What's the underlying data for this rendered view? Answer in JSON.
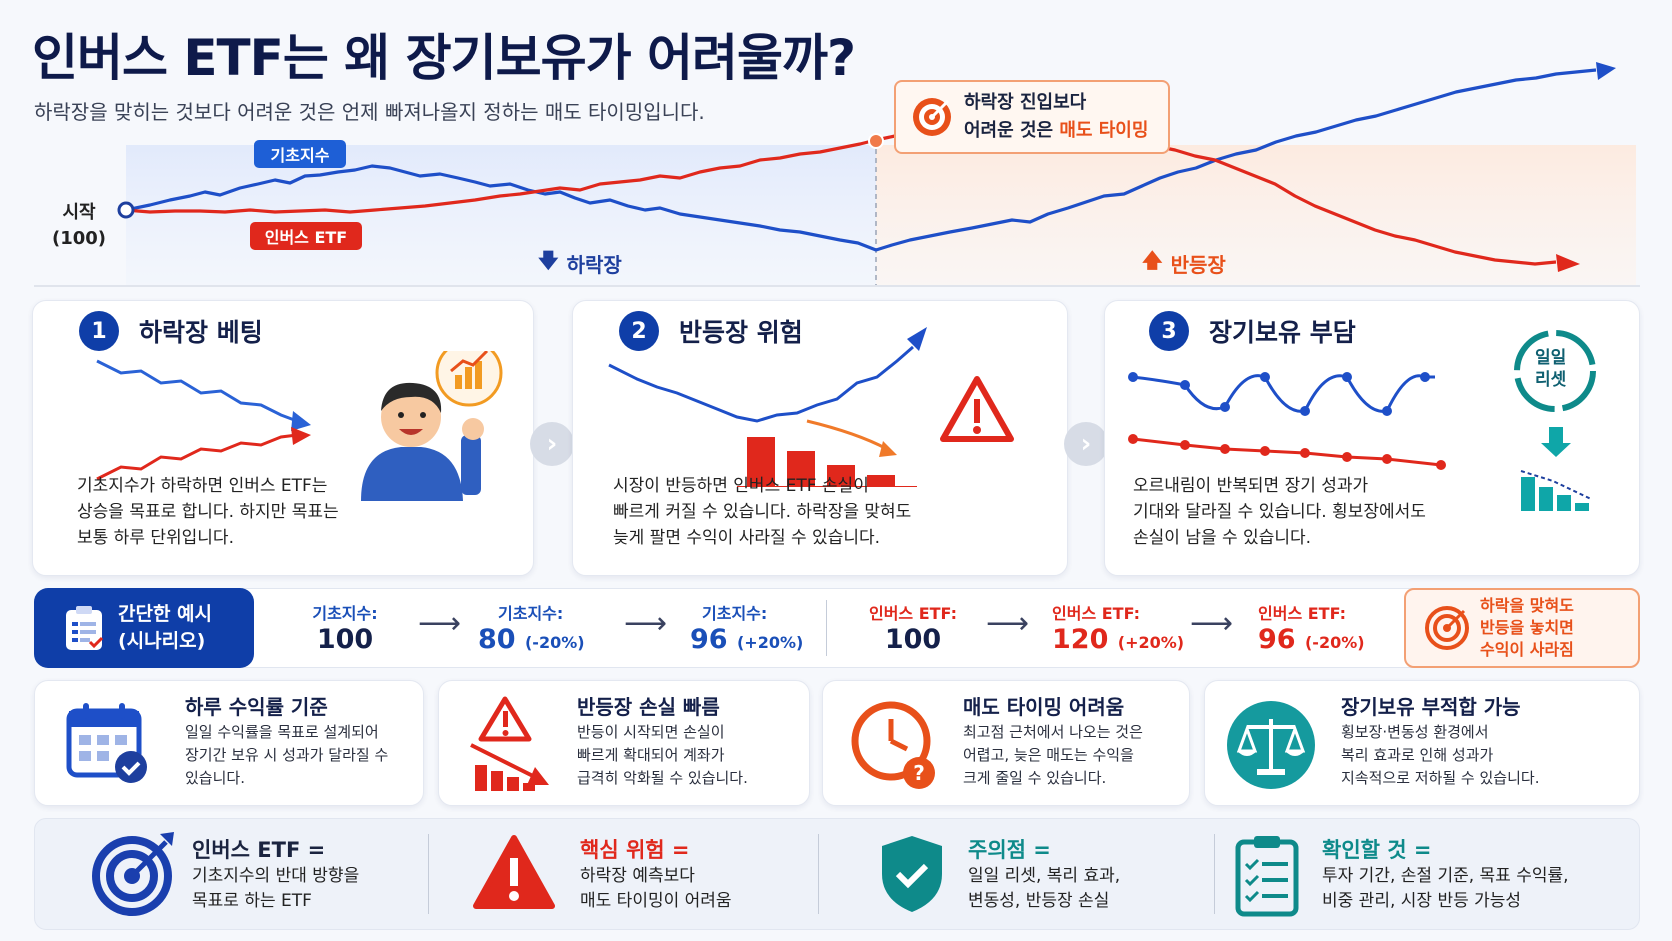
{
  "header": {
    "title": "인버스 ETF는 왜 장기보유가 어려울까?",
    "subtitle": "하락장을 맞히는 것보다 어려운 것은 언제 빠져나올지 정하는 매도 타이밍입니다."
  },
  "top_chart": {
    "start_label_line1": "시작",
    "start_label_line2": "(100)",
    "underlying_tag": "기초지수",
    "inverse_tag": "인버스 ETF",
    "bear_zone": "하락장",
    "rebound_zone": "반등장",
    "callout_line1": "하락장 진입보다",
    "callout_line2_plain": "어려운 것은 ",
    "callout_line2_highlight": "매도 타이밍",
    "colors": {
      "underlying": "#1e4fc8",
      "inverse": "#e0281c"
    }
  },
  "cards": [
    {
      "number": "1",
      "title": "하락장 베팅",
      "body": [
        "기초지수가 하락하면 인버스 ETF는",
        "상승을 목표로 합니다. 하지만 목표는",
        "보통 하루 단위입니다."
      ]
    },
    {
      "number": "2",
      "title": "반등장 위험",
      "body": [
        "시장이 반등하면 인버스 ETF 손실이",
        "빠르게 커질 수 있습니다. 하락장을 맞혀도",
        "늦게 팔면 수익이 사라질 수 있습니다."
      ]
    },
    {
      "number": "3",
      "title": "장기보유 부담",
      "body": [
        "오르내림이 반복되면 장기 성과가",
        "기대와 달라질 수 있습니다. 횡보장에서도",
        "손실이 남을 수 있습니다."
      ],
      "reset_line1": "일일",
      "reset_line2": "리셋"
    }
  ],
  "example": {
    "title_line1": "간단한 예시",
    "title_line2": "(시나리오)",
    "underlying": [
      {
        "label": "기초지수:",
        "value": "100",
        "change": ""
      },
      {
        "label": "기초지수:",
        "value": "80",
        "change": "(-20%)"
      },
      {
        "label": "기초지수:",
        "value": "96",
        "change": "(+20%)"
      }
    ],
    "inverse": [
      {
        "label": "인버스 ETF:",
        "value": "100",
        "change": ""
      },
      {
        "label": "인버스 ETF:",
        "value": "120",
        "change": "(+20%)"
      },
      {
        "label": "인버스 ETF:",
        "value": "96",
        "change": "(-20%)"
      }
    ],
    "warning": [
      "하락을 맞혀도",
      "반등을 놓치면",
      "수익이 사라짐"
    ]
  },
  "features": [
    {
      "title": "하루 수익률 기준",
      "body": [
        "일일 수익률을 목표로 설계되어",
        "장기간 보유 시 성과가 달라질 수",
        "있습니다."
      ]
    },
    {
      "title": "반등장 손실 빠름",
      "body": [
        "반등이 시작되면 손실이",
        "빠르게 확대되어 계좌가",
        "급격히 악화될 수 있습니다."
      ]
    },
    {
      "title": "매도 타이밍 어려움",
      "body": [
        "최고점 근처에서 나오는 것은",
        "어렵고, 늦은 매도는 수익을",
        "크게 줄일 수 있습니다."
      ]
    },
    {
      "title": "장기보유 부적합 가능",
      "body": [
        "횡보장·변동성 환경에서",
        "복리 효과로 인해 성과가",
        "지속적으로 저하될 수 있습니다."
      ]
    }
  ],
  "summary": [
    {
      "title": "인버스 ETF =",
      "body": [
        "기초지수의 반대 방향을",
        "목표로 하는 ETF"
      ],
      "color": "#1a3fae"
    },
    {
      "title": "핵심 위험 =",
      "body": [
        "하락장 예측보다",
        "매도 타이밍이 어려움"
      ],
      "color": "#e0281c"
    },
    {
      "title": "주의점 =",
      "body": [
        "일일 리셋, 복리 효과,",
        "변동성, 반등장 손실"
      ],
      "color": "#0e8a8a"
    },
    {
      "title": "확인할 것 =",
      "body": [
        "투자 기간, 손절 기준, 목표 수익률,",
        "비중 관리, 시장 반등 가능성"
      ],
      "color": "#0e8a8a"
    }
  ]
}
